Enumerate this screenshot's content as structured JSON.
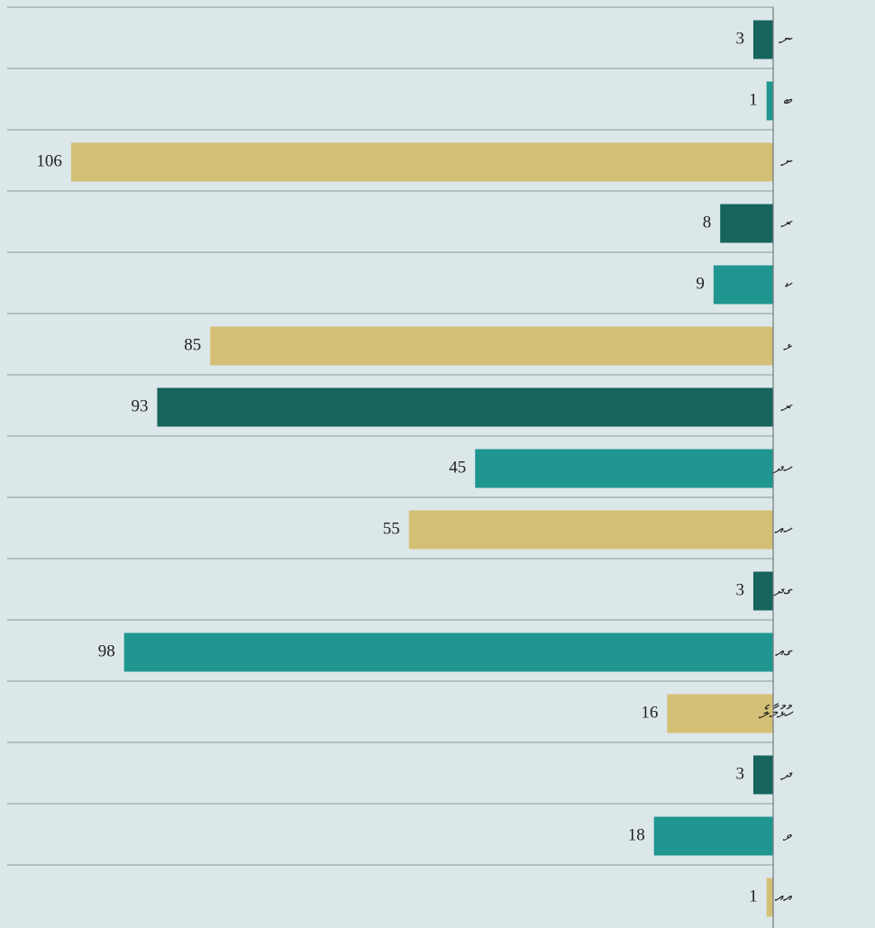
{
  "chart_data": {
    "type": "barh",
    "categories": [
      "ނ",
      "ބ",
      "ށ",
      "ރ",
      "ކ",
      "ޅ",
      "ރ",
      "ހދ",
      "ހއ",
      "ގދ",
      "ގއ",
      "ހުޅުމާލެ",
      "ދ",
      "ވ",
      "އއ"
    ],
    "values": [
      3,
      1,
      106,
      8,
      9,
      85,
      93,
      45,
      55,
      3,
      98,
      16,
      3,
      18,
      1
    ],
    "colors": [
      "#17645f",
      "#1f9690",
      "#d4bf76",
      "#17645f",
      "#1f9690",
      "#d4bf76",
      "#17645f",
      "#1f9690",
      "#d4bf76",
      "#17645f",
      "#1f9690",
      "#d4bf76",
      "#17645f",
      "#1f9690",
      "#d4bf76"
    ],
    "xlim": [
      0,
      110
    ]
  }
}
